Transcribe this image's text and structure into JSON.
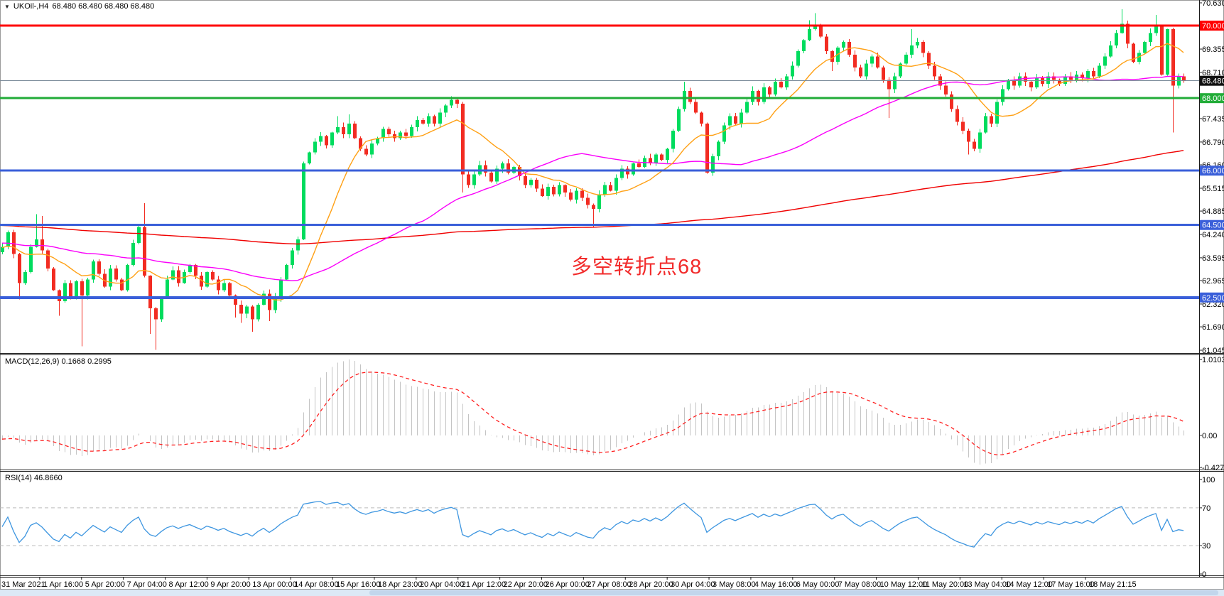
{
  "chart": {
    "symbol": "UKOil-,H4",
    "quotes": "68.480 68.480 68.480 68.480"
  },
  "macd": {
    "label": "MACD(12,26,9) 0.1668 0.2995"
  },
  "rsi": {
    "label": "RSI(14) 46.8660"
  },
  "annotation": {
    "text": "多空转折点68",
    "color": "#f22b2b"
  },
  "chart_data": {
    "type": "candlestick",
    "symbol": "UKOil-",
    "timeframe": "H4",
    "current_price": {
      "value": 68.48,
      "label": "68.480"
    },
    "price_axis": {
      "max": 70.63,
      "min": 61.045,
      "ticks": [
        70.63,
        69.355,
        68.71,
        67.435,
        66.79,
        66.16,
        65.515,
        64.885,
        64.24,
        63.595,
        62.965,
        62.32,
        61.69,
        61.045
      ]
    },
    "levels": [
      {
        "price": 70.0,
        "label": "70.000",
        "color_key": "level_red",
        "width": 3
      },
      {
        "price": 68.0,
        "label": "68.000",
        "color_key": "level_green",
        "width": 3
      },
      {
        "price": 66.0,
        "label": "66.000",
        "color_key": "level_blue",
        "width": 3
      },
      {
        "price": 64.5,
        "label": "64.500",
        "color_key": "level_blue",
        "width": 3
      },
      {
        "price": 62.5,
        "label": "62.500",
        "color_key": "level_blue",
        "width": 4
      }
    ],
    "macd_axis": {
      "max": 1.0103,
      "min": -0.4277,
      "ticks": [
        {
          "v": 1.0103,
          "t": "1.0103"
        },
        {
          "v": 0,
          "t": "0.00"
        },
        {
          "v": -0.4277,
          "t": "-0.4277"
        }
      ]
    },
    "rsi_axis": {
      "ticks": [
        {
          "v": 100,
          "t": "100"
        },
        {
          "v": 70,
          "t": "70"
        },
        {
          "v": 30,
          "t": "30"
        },
        {
          "v": 0,
          "t": "0"
        }
      ],
      "levels": [
        70,
        30
      ]
    },
    "indicators": {
      "sma_fast": 12,
      "sma_mid": 50,
      "sma_slow": 200,
      "macd": [
        12,
        26,
        9
      ],
      "rsi": 14
    },
    "colors": {
      "bull": "#00dc5e",
      "bear": "#f22c22",
      "ma_fast": "#ffa014",
      "ma_mid": "#fa00fa",
      "ma_slow": "#f00000",
      "macd_hist": "#c4c4c4",
      "macd_signal": "#ff2020",
      "rsi_line": "#3e96e0",
      "level_red": "#ff0000",
      "level_green": "#22ac38",
      "level_blue": "#3a5fd9",
      "price_line": "#7a8a99",
      "badge_black": "#111111",
      "rsi_level": "#bbbbbb"
    },
    "timeline": [
      "31 Mar 2021",
      "1 Apr 16:00",
      "5 Apr 20:00",
      "7 Apr 04:00",
      "8 Apr 12:00",
      "9 Apr 20:00",
      "13 Apr 00:00",
      "14 Apr 08:00",
      "15 Apr 16:00",
      "18 Apr 23:00",
      "20 Apr 04:00",
      "21 Apr 12:00",
      "22 Apr 20:00",
      "26 Apr 00:00",
      "27 Apr 08:00",
      "28 Apr 20:00",
      "30 Apr 04:00",
      "3 May 08:00",
      "4 May 16:00",
      "6 May 00:00",
      "7 May 08:00",
      "10 May 12:00",
      "11 May 20:00",
      "13 May 04:00",
      "14 May 12:00",
      "17 May 16:00",
      "18 May 21:15"
    ],
    "prehistory": {
      "count": 210,
      "from": 65.2,
      "to": 63.85,
      "wave": 0.3
    },
    "candles": [
      [
        3,
        63.9
      ],
      [
        11,
        64.3
      ],
      [
        19,
        63.7
      ],
      [
        27,
        62.9,
        null,
        62.45
      ],
      [
        35,
        63.2
      ],
      [
        43,
        63.9
      ],
      [
        51,
        64.1,
        64.8
      ],
      [
        59,
        63.8,
        64.75
      ],
      [
        67,
        63.3
      ],
      [
        75,
        62.7
      ],
      [
        83,
        62.4,
        null,
        62.0
      ],
      [
        91,
        62.9
      ],
      [
        99,
        62.5
      ],
      [
        107,
        62.95
      ],
      [
        115,
        62.55,
        null,
        61.15
      ],
      [
        123,
        63.0
      ],
      [
        131,
        63.5
      ],
      [
        139,
        63.15
      ],
      [
        147,
        62.8
      ],
      [
        155,
        63.3
      ],
      [
        163,
        63.0
      ],
      [
        171,
        62.7
      ],
      [
        179,
        63.4
      ],
      [
        187,
        64.0
      ],
      [
        195,
        64.45
      ],
      [
        203,
        63.1,
        65.1
      ],
      [
        211,
        62.2,
        null,
        61.5
      ],
      [
        219,
        61.9,
        null,
        61.05
      ],
      [
        227,
        62.5
      ],
      [
        235,
        63.0
      ],
      [
        243,
        63.25
      ],
      [
        251,
        62.9
      ],
      [
        259,
        63.2
      ],
      [
        267,
        63.4
      ],
      [
        275,
        63.1
      ],
      [
        283,
        62.8
      ],
      [
        291,
        63.2
      ],
      [
        299,
        63.0
      ],
      [
        307,
        62.7
      ],
      [
        315,
        62.9
      ],
      [
        323,
        62.55
      ],
      [
        331,
        62.3,
        null,
        61.95
      ],
      [
        339,
        62.05,
        null,
        61.8
      ],
      [
        347,
        62.25
      ],
      [
        355,
        61.9,
        null,
        61.55
      ],
      [
        363,
        62.3
      ],
      [
        371,
        62.6
      ],
      [
        379,
        62.15,
        null,
        61.85
      ],
      [
        387,
        62.5
      ],
      [
        395,
        63.0
      ],
      [
        403,
        63.4
      ],
      [
        411,
        63.8
      ],
      [
        419,
        64.1
      ],
      [
        427,
        66.2
      ],
      [
        435,
        66.5
      ],
      [
        443,
        66.8
      ],
      [
        451,
        66.95
      ],
      [
        459,
        66.7
      ],
      [
        467,
        67.05
      ],
      [
        475,
        67.2,
        67.5
      ],
      [
        483,
        67.0
      ],
      [
        491,
        67.3,
        67.55
      ],
      [
        499,
        66.9
      ],
      [
        507,
        66.6
      ],
      [
        515,
        66.45
      ],
      [
        523,
        66.75
      ],
      [
        531,
        66.9
      ],
      [
        539,
        67.15
      ],
      [
        547,
        67.0
      ],
      [
        555,
        66.9
      ],
      [
        563,
        67.05
      ],
      [
        571,
        66.95
      ],
      [
        579,
        67.2
      ],
      [
        587,
        67.4
      ],
      [
        595,
        67.3
      ],
      [
        603,
        67.5
      ],
      [
        611,
        67.3
      ],
      [
        619,
        67.6
      ],
      [
        627,
        67.8
      ],
      [
        635,
        67.95,
        68.05
      ],
      [
        643,
        67.85
      ],
      [
        651,
        65.9,
        null,
        65.4
      ],
      [
        659,
        65.6
      ],
      [
        667,
        65.9
      ],
      [
        675,
        66.15
      ],
      [
        683,
        65.95
      ],
      [
        691,
        65.7
      ],
      [
        699,
        66.05
      ],
      [
        707,
        66.2
      ],
      [
        715,
        65.95
      ],
      [
        723,
        66.1
      ],
      [
        731,
        65.85
      ],
      [
        739,
        65.6
      ],
      [
        747,
        65.75
      ],
      [
        755,
        65.5
      ],
      [
        763,
        65.3
      ],
      [
        771,
        65.55
      ],
      [
        779,
        65.35
      ],
      [
        787,
        65.6
      ],
      [
        795,
        65.4
      ],
      [
        803,
        65.2
      ],
      [
        811,
        65.45
      ],
      [
        819,
        65.25
      ],
      [
        827,
        65.05
      ],
      [
        835,
        64.95,
        null,
        64.45
      ],
      [
        843,
        65.35
      ],
      [
        851,
        65.6
      ],
      [
        859,
        65.45
      ],
      [
        867,
        65.8
      ],
      [
        875,
        66.05
      ],
      [
        883,
        65.9
      ],
      [
        891,
        66.2
      ],
      [
        899,
        66.1
      ],
      [
        907,
        66.35
      ],
      [
        915,
        66.2
      ],
      [
        923,
        66.45
      ],
      [
        931,
        66.3
      ],
      [
        939,
        66.6
      ],
      [
        947,
        67.1
      ],
      [
        955,
        67.7
      ],
      [
        963,
        68.2,
        68.45
      ],
      [
        971,
        67.9
      ],
      [
        979,
        67.6
      ],
      [
        987,
        67.3
      ],
      [
        995,
        65.95
      ],
      [
        1003,
        66.4
      ],
      [
        1011,
        66.8
      ],
      [
        1019,
        67.25
      ],
      [
        1027,
        67.5
      ],
      [
        1035,
        67.3
      ],
      [
        1043,
        67.6
      ],
      [
        1051,
        67.9
      ],
      [
        1059,
        68.2
      ],
      [
        1067,
        67.9
      ],
      [
        1075,
        68.3
      ],
      [
        1083,
        68.1
      ],
      [
        1091,
        68.45
      ],
      [
        1099,
        68.3
      ],
      [
        1107,
        68.6
      ],
      [
        1115,
        68.9
      ],
      [
        1123,
        69.3
      ],
      [
        1131,
        69.6
      ],
      [
        1139,
        69.9,
        70.15
      ],
      [
        1147,
        70.0,
        70.35
      ],
      [
        1155,
        69.7
      ],
      [
        1163,
        69.3
      ],
      [
        1171,
        69.0,
        null,
        68.75
      ],
      [
        1179,
        69.4
      ],
      [
        1187,
        69.55
      ],
      [
        1195,
        69.2
      ],
      [
        1203,
        68.85
      ],
      [
        1211,
        68.6
      ],
      [
        1219,
        68.95
      ],
      [
        1227,
        69.15
      ],
      [
        1235,
        68.85
      ],
      [
        1243,
        68.5
      ],
      [
        1251,
        68.25,
        null,
        67.45
      ],
      [
        1259,
        68.6
      ],
      [
        1267,
        68.95
      ],
      [
        1275,
        69.2
      ],
      [
        1283,
        69.45,
        69.9
      ],
      [
        1291,
        69.55
      ],
      [
        1299,
        69.25
      ],
      [
        1307,
        68.9
      ],
      [
        1315,
        68.6
      ],
      [
        1323,
        68.35
      ],
      [
        1331,
        68.1
      ],
      [
        1339,
        67.7
      ],
      [
        1347,
        67.35
      ],
      [
        1355,
        67.1
      ],
      [
        1363,
        66.8,
        null,
        66.45
      ],
      [
        1371,
        66.6
      ],
      [
        1379,
        67.05
      ],
      [
        1387,
        67.5
      ],
      [
        1395,
        67.3
      ],
      [
        1403,
        67.9
      ],
      [
        1411,
        68.25
      ],
      [
        1419,
        68.5
      ],
      [
        1427,
        68.35
      ],
      [
        1435,
        68.6
      ],
      [
        1443,
        68.45
      ],
      [
        1451,
        68.3
      ],
      [
        1459,
        68.55
      ],
      [
        1467,
        68.4
      ],
      [
        1475,
        68.6
      ],
      [
        1483,
        68.5
      ],
      [
        1491,
        68.4
      ],
      [
        1499,
        68.6
      ],
      [
        1507,
        68.5
      ],
      [
        1515,
        68.65
      ],
      [
        1523,
        68.55
      ],
      [
        1531,
        68.75
      ],
      [
        1539,
        68.6
      ],
      [
        1547,
        68.9
      ],
      [
        1555,
        69.15
      ],
      [
        1563,
        69.45
      ],
      [
        1571,
        69.8
      ],
      [
        1579,
        70.05,
        70.45
      ],
      [
        1587,
        69.5
      ],
      [
        1595,
        69.0
      ],
      [
        1603,
        69.25
      ],
      [
        1611,
        69.55
      ],
      [
        1619,
        69.8
      ],
      [
        1627,
        70.0,
        70.3
      ],
      [
        1635,
        68.65
      ],
      [
        1643,
        69.9
      ],
      [
        1651,
        68.35,
        null,
        67.05
      ],
      [
        1659,
        68.6
      ],
      [
        1666,
        68.48
      ]
    ]
  }
}
